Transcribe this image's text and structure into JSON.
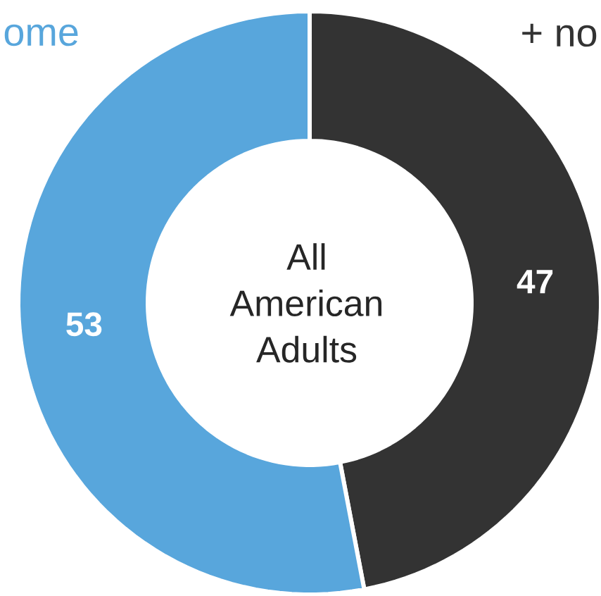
{
  "chart_data": {
    "type": "donut",
    "title": "All American Adults",
    "categories": [
      "ome",
      "+ no"
    ],
    "values": [
      53,
      47
    ],
    "colors": [
      "#58a6dc",
      "#333333"
    ],
    "data_labels": true
  }
}
